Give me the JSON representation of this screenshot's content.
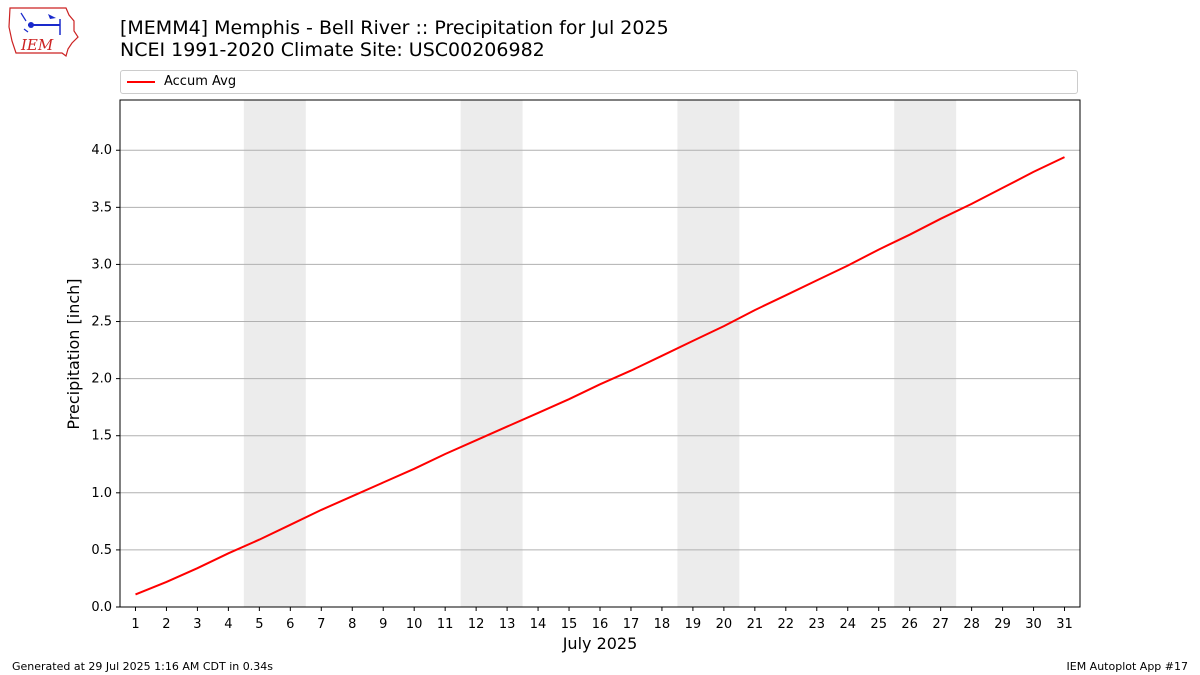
{
  "header": {
    "title_line1": "[MEMM4] Memphis - Bell River :: Precipitation for Jul 2025",
    "title_line2": "NCEI 1991-2020 Climate Site: USC00206982"
  },
  "logo": {
    "text": "IEM",
    "icon": "iem-iowa-logo"
  },
  "legend": {
    "label": "Accum Avg",
    "color": "#ff0000"
  },
  "footer": {
    "left": "Generated at 29 Jul 2025 1:16 AM CDT in 0.34s",
    "right": "IEM Autoplot App #17"
  },
  "chart_data": {
    "type": "line",
    "title": "[MEMM4] Memphis - Bell River :: Precipitation for Jul 2025",
    "xlabel": "July 2025",
    "ylabel": "Precipitation [inch]",
    "x": [
      1,
      2,
      3,
      4,
      5,
      6,
      7,
      8,
      9,
      10,
      11,
      12,
      13,
      14,
      15,
      16,
      17,
      18,
      19,
      20,
      21,
      22,
      23,
      24,
      25,
      26,
      27,
      28,
      29,
      30,
      31
    ],
    "series": [
      {
        "name": "Accum Avg",
        "color": "#ff0000",
        "values": [
          0.11,
          0.22,
          0.34,
          0.47,
          0.59,
          0.72,
          0.85,
          0.97,
          1.09,
          1.21,
          1.34,
          1.46,
          1.58,
          1.7,
          1.82,
          1.95,
          2.07,
          2.2,
          2.33,
          2.46,
          2.6,
          2.73,
          2.86,
          2.99,
          3.13,
          3.26,
          3.4,
          3.53,
          3.67,
          3.81,
          3.94
        ]
      }
    ],
    "weekend_bands": [
      [
        5,
        6
      ],
      [
        12,
        13
      ],
      [
        19,
        20
      ],
      [
        26,
        27
      ]
    ],
    "xlim": [
      0.5,
      31.5
    ],
    "ylim": [
      0,
      4.44
    ],
    "yticks": [
      0.0,
      0.5,
      1.0,
      1.5,
      2.0,
      2.5,
      3.0,
      3.5,
      4.0
    ],
    "ytick_labels": [
      "0.0",
      "0.5",
      "1.0",
      "1.5",
      "2.0",
      "2.5",
      "3.0",
      "3.5",
      "4.0"
    ],
    "grid": "horizontal",
    "legend_position": "top"
  }
}
